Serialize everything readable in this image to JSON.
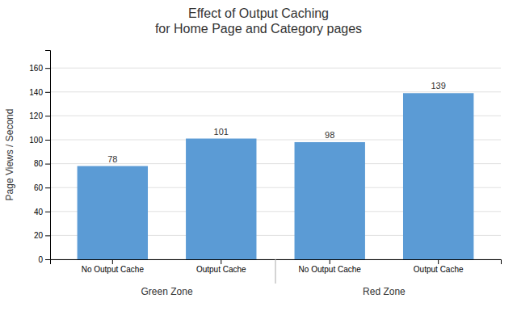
{
  "chart_data": {
    "type": "bar",
    "title": "Effect of Output Caching\nfor Home Page and Category pages",
    "ylabel": "Page Views / Second",
    "categories": [
      "No Output Cache",
      "Output Cache",
      "No Output Cache",
      "Output Cache"
    ],
    "groups": [
      "Green Zone",
      "Red Zone"
    ],
    "values": [
      78,
      101,
      98,
      139
    ],
    "color": "#5B9BD5",
    "ylim": [
      0,
      175
    ],
    "yticks": [
      0,
      20,
      40,
      60,
      80,
      100,
      120,
      140,
      160
    ],
    "grid": true,
    "data_labels": true
  }
}
